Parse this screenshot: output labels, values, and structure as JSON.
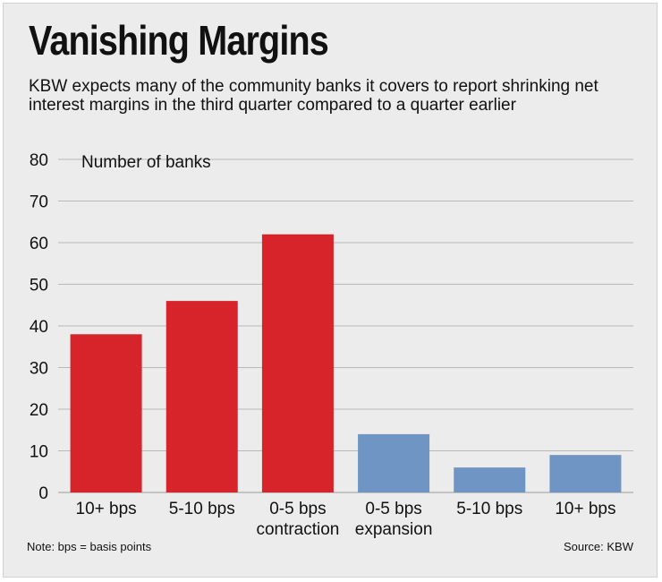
{
  "title": "Vanishing Margins",
  "subtitle": "KBW expects many of the community banks it covers to report shrinking net interest margins in the third quarter compared to a quarter earlier",
  "note": "Note: bps = basis points",
  "source": "Source: KBW",
  "colors": {
    "contraction": "#d7242b",
    "expansion": "#6f95c4",
    "grid": "#b9b9b9",
    "background": "#ececec"
  },
  "chart_data": {
    "type": "bar",
    "ylabel": "Number of banks",
    "ylim": [
      0,
      80
    ],
    "yticks": [
      0,
      10,
      20,
      30,
      40,
      50,
      60,
      70,
      80
    ],
    "grid": true,
    "categories": [
      [
        "10+ bps"
      ],
      [
        "5-10 bps"
      ],
      [
        "0-5 bps",
        "contraction"
      ],
      [
        "0-5 bps",
        "expansion"
      ],
      [
        "5-10 bps"
      ],
      [
        "10+ bps"
      ]
    ],
    "values": [
      38,
      46,
      62,
      14,
      6,
      9
    ],
    "groups": [
      "contraction",
      "contraction",
      "contraction",
      "expansion",
      "expansion",
      "expansion"
    ]
  }
}
